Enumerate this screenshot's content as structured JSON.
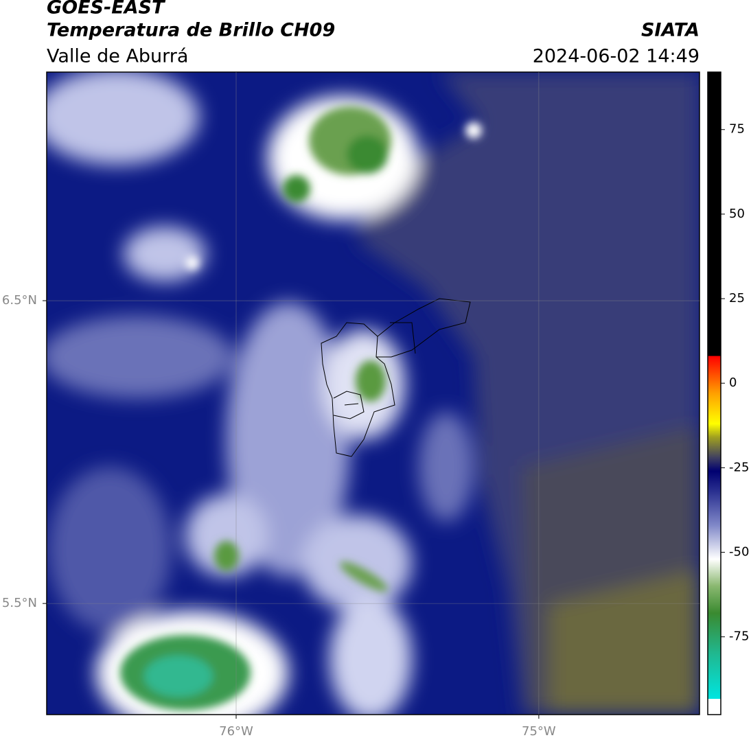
{
  "header": {
    "title": "GOES-EAST",
    "subtitle": "Temperatura de Brillo CH09",
    "region": "Valle de Aburrá",
    "source": "SIATA",
    "datetime": "2024-06-02 14:49"
  },
  "map": {
    "xlim": [
      -76.626,
      -74.469
    ],
    "ylim": [
      5.133,
      7.255
    ],
    "xticks": [
      {
        "value": -76,
        "label": "76°W"
      },
      {
        "value": -75,
        "label": "75°W"
      }
    ],
    "yticks": [
      {
        "value": 6.5,
        "label": "6.5°N"
      },
      {
        "value": 5.5,
        "label": "5.5°N"
      }
    ],
    "grid": true
  },
  "colorbar": {
    "lim": [
      -98,
      92
    ],
    "ticks": [
      75,
      50,
      25,
      0,
      -25,
      -50,
      -75
    ],
    "stops": [
      {
        "value": -98,
        "color": "#ffffff"
      },
      {
        "value": -93.4,
        "color": "#ffffff"
      },
      {
        "value": -93.3,
        "color": "#00e5e0"
      },
      {
        "value": -80,
        "color": "#20b890"
      },
      {
        "value": -68,
        "color": "#3a8a30"
      },
      {
        "value": -60,
        "color": "#8ab870"
      },
      {
        "value": -52,
        "color": "#ffffff"
      },
      {
        "value": -42,
        "color": "#8088c8"
      },
      {
        "value": -32,
        "color": "#2a3090"
      },
      {
        "value": -26,
        "color": "#000070"
      },
      {
        "value": -22,
        "color": "#404060"
      },
      {
        "value": -16,
        "color": "#a0a020"
      },
      {
        "value": -12,
        "color": "#ffff00"
      },
      {
        "value": -3,
        "color": "#ffa000"
      },
      {
        "value": 8,
        "color": "#ff0000"
      },
      {
        "value": 8.1,
        "color": "#000000"
      },
      {
        "value": 92,
        "color": "#000000"
      }
    ]
  }
}
